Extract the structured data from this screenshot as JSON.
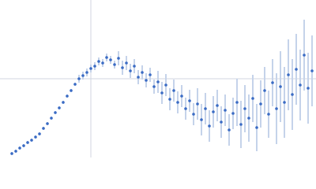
{
  "chart_data": {
    "type": "scatter",
    "x": [
      0.15,
      0.2,
      0.25,
      0.3,
      0.35,
      0.4,
      0.45,
      0.5,
      0.55,
      0.6,
      0.65,
      0.7,
      0.75,
      0.8,
      0.85,
      0.9,
      0.95,
      1.0,
      1.05,
      1.1,
      1.15,
      1.2,
      1.25,
      1.3,
      1.35,
      1.4,
      1.45,
      1.5,
      1.55,
      1.6,
      1.65,
      1.7,
      1.75,
      1.8,
      1.85,
      1.9,
      1.95,
      2.0,
      2.05,
      2.1,
      2.15,
      2.2,
      2.25,
      2.3,
      2.35,
      2.4,
      2.45,
      2.5,
      2.55,
      2.6,
      2.65,
      2.7,
      2.75,
      2.8,
      2.85,
      2.9,
      2.95,
      3.0,
      3.05,
      3.1,
      3.15,
      3.2,
      3.25,
      3.3,
      3.35,
      3.4,
      3.45,
      3.5,
      3.55,
      3.6,
      3.65,
      3.7,
      3.75,
      3.8,
      3.85,
      3.9,
      3.95
    ],
    "series": [
      {
        "color": "#3a6bc4",
        "error_color": "#c5d3ea",
        "values": [
          0.05,
          0.08,
          0.12,
          0.15,
          0.19,
          0.22,
          0.26,
          0.3,
          0.37,
          0.43,
          0.5,
          0.57,
          0.63,
          0.7,
          0.78,
          0.85,
          0.93,
          1.0,
          1.04,
          1.08,
          1.13,
          1.16,
          1.22,
          1.2,
          1.27,
          1.24,
          1.18,
          1.26,
          1.14,
          1.2,
          1.1,
          1.16,
          1.02,
          1.08,
          0.98,
          1.05,
          0.9,
          0.96,
          0.82,
          0.92,
          0.74,
          0.85,
          0.7,
          0.78,
          0.62,
          0.72,
          0.55,
          0.68,
          0.48,
          0.62,
          0.4,
          0.58,
          0.66,
          0.45,
          0.6,
          0.35,
          0.56,
          0.7,
          0.42,
          0.62,
          0.5,
          0.75,
          0.38,
          0.68,
          0.85,
          0.55,
          0.95,
          0.62,
          0.9,
          0.7,
          1.05,
          0.8,
          1.12,
          0.92,
          1.3,
          0.88,
          1.1
        ],
        "errors": [
          0.02,
          0.02,
          0.02,
          0.02,
          0.02,
          0.02,
          0.02,
          0.02,
          0.02,
          0.02,
          0.02,
          0.02,
          0.02,
          0.02,
          0.02,
          0.02,
          0.02,
          0.05,
          0.05,
          0.05,
          0.05,
          0.05,
          0.05,
          0.05,
          0.05,
          0.05,
          0.05,
          0.09,
          0.09,
          0.09,
          0.09,
          0.09,
          0.09,
          0.09,
          0.09,
          0.09,
          0.09,
          0.14,
          0.14,
          0.14,
          0.14,
          0.14,
          0.14,
          0.14,
          0.14,
          0.14,
          0.14,
          0.2,
          0.2,
          0.2,
          0.2,
          0.2,
          0.2,
          0.2,
          0.2,
          0.2,
          0.2,
          0.3,
          0.3,
          0.3,
          0.3,
          0.3,
          0.3,
          0.3,
          0.3,
          0.3,
          0.3,
          0.45,
          0.45,
          0.45,
          0.45,
          0.45,
          0.45,
          0.45,
          0.45,
          0.45,
          0.45
        ]
      }
    ],
    "xlim": [
      0,
      4
    ],
    "ylim": [
      0,
      2
    ],
    "xticks": [
      1.15
    ],
    "yticks": [
      1
    ],
    "grid": true
  }
}
